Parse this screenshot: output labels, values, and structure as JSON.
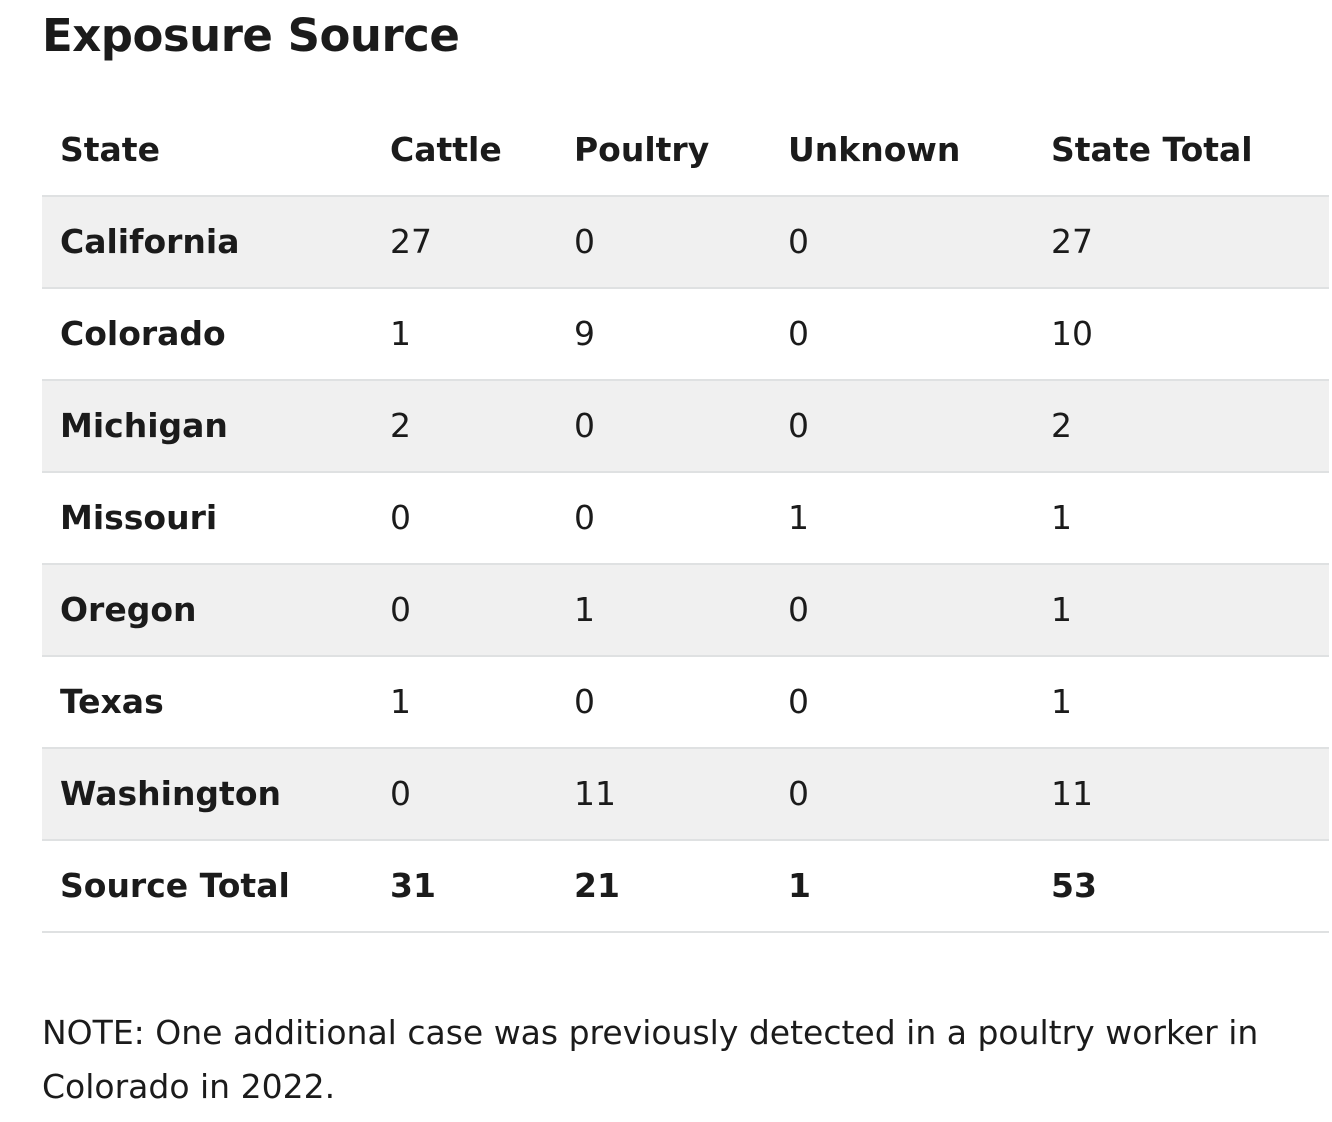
{
  "title": "Exposure Source",
  "table": {
    "headers": [
      "State",
      "Cattle",
      "Poultry",
      "Unknown",
      "State Total"
    ],
    "rows": [
      {
        "state": "California",
        "cattle": "27",
        "poultry": "0",
        "unknown": "0",
        "total": "27"
      },
      {
        "state": "Colorado",
        "cattle": "1",
        "poultry": "9",
        "unknown": "0",
        "total": "10"
      },
      {
        "state": "Michigan",
        "cattle": "2",
        "poultry": "0",
        "unknown": "0",
        "total": "2"
      },
      {
        "state": "Missouri",
        "cattle": "0",
        "poultry": "0",
        "unknown": "1",
        "total": "1"
      },
      {
        "state": "Oregon",
        "cattle": "0",
        "poultry": "1",
        "unknown": "0",
        "total": "1"
      },
      {
        "state": "Texas",
        "cattle": "1",
        "poultry": "0",
        "unknown": "0",
        "total": "1"
      },
      {
        "state": "Washington",
        "cattle": "0",
        "poultry": "11",
        "unknown": "0",
        "total": "11"
      }
    ],
    "total_row": {
      "state": "Source Total",
      "cattle": "31",
      "poultry": "21",
      "unknown": "1",
      "total": "53"
    }
  },
  "note": "NOTE: One additional case was previously detected in a poultry worker in Colorado in 2022.",
  "colors": {
    "stripe": "#f0f0f0",
    "border": "#dfe1e2",
    "text": "#1b1b1b"
  }
}
